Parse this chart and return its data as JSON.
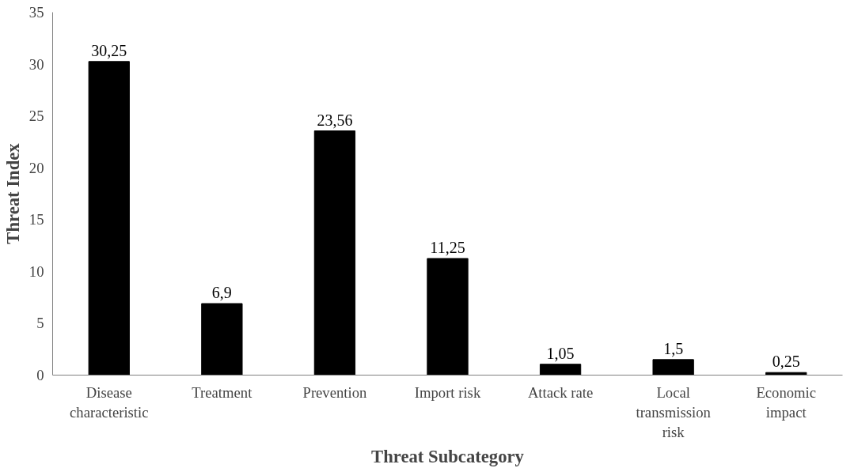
{
  "chart_data": {
    "type": "bar",
    "xlabel": "Threat Subcategory",
    "ylabel": "Threat Index",
    "categories": [
      "Disease characteristic",
      "Treatment",
      "Prevention",
      "Import risk",
      "Attack rate",
      "Local transmission risk",
      "Economic impact"
    ],
    "values": [
      30.25,
      6.9,
      23.56,
      11.25,
      1.05,
      1.5,
      0.25
    ],
    "value_labels": [
      "30,25",
      "6,9",
      "23,56",
      "11,25",
      "1,05",
      "1,5",
      "0,25"
    ],
    "color": "#000000",
    "ylim": [
      0,
      35
    ],
    "yticks": [
      0,
      5,
      10,
      15,
      20,
      25,
      30,
      35
    ],
    "grid": false
  }
}
